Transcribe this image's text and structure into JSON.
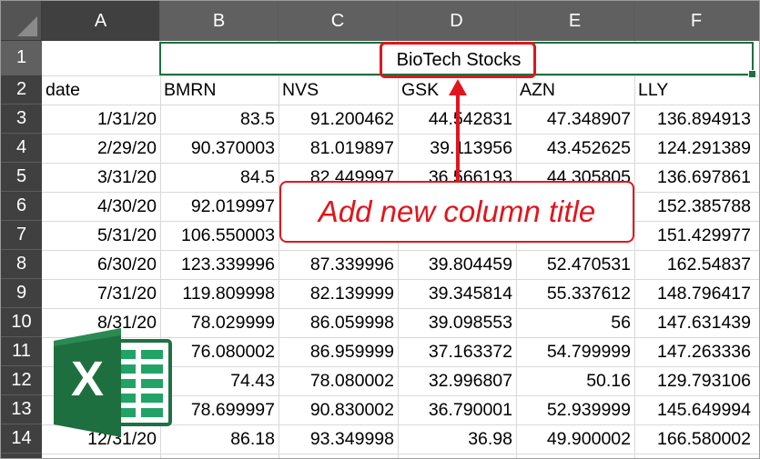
{
  "columns": [
    "A",
    "B",
    "C",
    "D",
    "E",
    "F"
  ],
  "rows": [
    "1",
    "2",
    "3",
    "4",
    "5",
    "6",
    "7",
    "8",
    "9",
    "10",
    "11",
    "12",
    "13",
    "14"
  ],
  "title_cell": "BioTech Stocks",
  "headers": [
    "date",
    "BMRN",
    "NVS",
    "GSK",
    "AZN",
    "LLY"
  ],
  "data": [
    [
      "1/31/20",
      "83.5",
      "91.200462",
      "44.542831",
      "47.348907",
      "136.894913"
    ],
    [
      "2/29/20",
      "90.370003",
      "81.019897",
      "39.113956",
      "43.452625",
      "124.291389"
    ],
    [
      "3/31/20",
      "84.5",
      "82.449997",
      "36.566193",
      "44.305805",
      "136.697861"
    ],
    [
      "4/30/20",
      "92.019997",
      "",
      "",
      "",
      "152.385788"
    ],
    [
      "5/31/20",
      "106.550003",
      "",
      "",
      "",
      "151.429977"
    ],
    [
      "6/30/20",
      "123.339996",
      "87.339996",
      "39.804459",
      "52.470531",
      "162.54837"
    ],
    [
      "7/31/20",
      "119.809998",
      "82.139999",
      "39.345814",
      "55.337612",
      "148.796417"
    ],
    [
      "8/31/20",
      "78.029999",
      "86.059998",
      "39.098553",
      "56",
      "147.631439"
    ],
    [
      "",
      "76.080002",
      "86.959999",
      "37.163372",
      "54.799999",
      "147.263336"
    ],
    [
      "",
      "74.43",
      "78.080002",
      "32.996807",
      "50.16",
      "129.793106"
    ],
    [
      "",
      "78.699997",
      "90.830002",
      "36.790001",
      "52.939999",
      "145.649994"
    ],
    [
      "12/31/20",
      "86.18",
      "93.349998",
      "36.98",
      "49.900002",
      "166.580002"
    ]
  ],
  "callout": "Add new column title",
  "logo_letter": "X",
  "colors": {
    "accent_red": "#e0161d",
    "excel_green": "#1e6f3f",
    "header_dark": "#404040"
  }
}
